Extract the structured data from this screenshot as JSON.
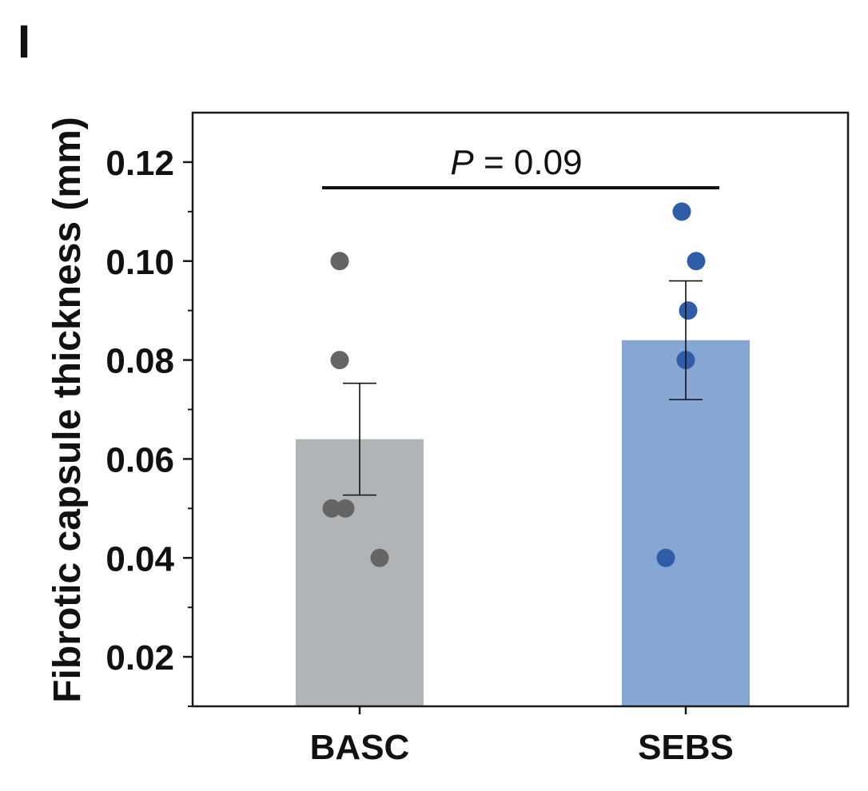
{
  "panel_label": "I",
  "chart_data": {
    "type": "bar",
    "categories": [
      "BASC",
      "SEBS"
    ],
    "values": [
      0.064,
      0.084
    ],
    "error": [
      0.0113,
      0.012
    ],
    "points": [
      [
        0.1,
        0.08,
        0.05,
        0.05,
        0.04
      ],
      [
        0.11,
        0.1,
        0.09,
        0.08,
        0.04
      ]
    ],
    "title": "",
    "xlabel": "",
    "ylabel": "Fibrotic capsule thickness (mm)",
    "ylim": [
      0.01,
      0.13
    ],
    "yticks": [
      0.02,
      0.04,
      0.06,
      0.08,
      0.1,
      0.12
    ],
    "ytick_labels": [
      "0.02",
      "0.04",
      "0.06",
      "0.08",
      "0.10",
      "0.12"
    ],
    "grid": false,
    "annotation": {
      "p_symbol": "P",
      "p_text": " = 0.09",
      "y_value": 0.1148
    },
    "colors": {
      "bars": [
        "#b1b4b6",
        "#86a7d4"
      ],
      "points": [
        "#656565",
        "#2f5da8"
      ],
      "axis": "#1a1a1a"
    }
  }
}
